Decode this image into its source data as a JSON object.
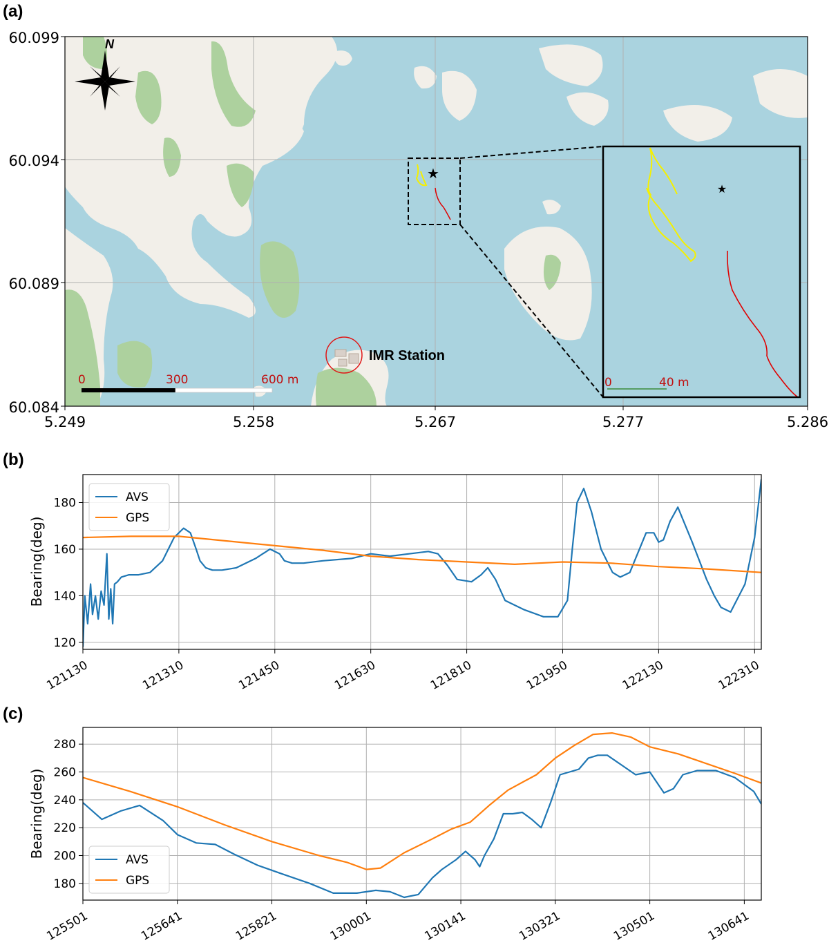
{
  "panels": {
    "a": "(a)",
    "b": "(b)",
    "c": "(c)"
  },
  "colors": {
    "water": "#aad3df",
    "land": "#f2efe9",
    "wood": "#add19e",
    "avs": "#1f77b4",
    "gps": "#ff7f0e",
    "track_yellow": "#f5f000",
    "track_red": "#e00000",
    "scale_text": "#c01010"
  },
  "map": {
    "y_ticks": [
      "60.099",
      "60.094",
      "60.089",
      "60.084"
    ],
    "x_ticks": [
      "5.249",
      "5.258",
      "5.267",
      "5.277",
      "5.286"
    ],
    "north_label": "N",
    "station_label": "IMR Station",
    "scale_labels": [
      "0",
      "300",
      "600 m"
    ],
    "inset_scale_labels": [
      "0",
      "40 m"
    ],
    "icons": [
      "compass-rose-icon",
      "star-icon"
    ]
  },
  "chart_data": [
    {
      "type": "line",
      "panel": "b",
      "ylabel": "Bearing(deg)",
      "xlabel": "",
      "x_tick_labels": [
        "121130",
        "121310",
        "121450",
        "121630",
        "121810",
        "121950",
        "122130",
        "122310"
      ],
      "yticks": [
        120,
        140,
        160,
        180
      ],
      "ylim": [
        117,
        192
      ],
      "xlim": [
        0,
        7.07
      ],
      "grid": true,
      "legend": "upper left",
      "series": [
        {
          "name": "AVS",
          "color": "#1f77b4",
          "x": [
            0,
            0.02,
            0.05,
            0.08,
            0.1,
            0.13,
            0.16,
            0.19,
            0.22,
            0.25,
            0.27,
            0.29,
            0.31,
            0.33,
            0.36,
            0.4,
            0.48,
            0.58,
            0.7,
            0.83,
            0.95,
            1.05,
            1.12,
            1.18,
            1.22,
            1.28,
            1.35,
            1.45,
            1.6,
            1.8,
            1.95,
            2.05,
            2.1,
            2.18,
            2.3,
            2.5,
            2.8,
            3.0,
            3.2,
            3.4,
            3.6,
            3.7,
            3.8,
            3.9,
            4.05,
            4.15,
            4.22,
            4.3,
            4.4,
            4.6,
            4.8,
            4.95,
            5.05,
            5.1,
            5.15,
            5.22,
            5.3,
            5.4,
            5.52,
            5.6,
            5.7,
            5.8,
            5.87,
            5.95,
            6.0,
            6.05,
            6.12,
            6.2,
            6.35,
            6.5,
            6.58,
            6.65,
            6.75,
            6.9,
            7.0,
            7.07
          ],
          "y": [
            118,
            140,
            128,
            145,
            132,
            140,
            130,
            142,
            136,
            158,
            130,
            143,
            128,
            145,
            146,
            148,
            149,
            149,
            150,
            155,
            165,
            169,
            167,
            160,
            155,
            152,
            151,
            151,
            152,
            156,
            160,
            158,
            155,
            154,
            154,
            155,
            156,
            158,
            157,
            158,
            159,
            158,
            153,
            147,
            146,
            149,
            152,
            147,
            138,
            134,
            131,
            131,
            138,
            160,
            180,
            186,
            176,
            160,
            150,
            148,
            150,
            160,
            167,
            167,
            163,
            164,
            172,
            178,
            163,
            147,
            140,
            135,
            133,
            145,
            165,
            190
          ]
        },
        {
          "name": "GPS",
          "color": "#ff7f0e",
          "x": [
            0,
            0.5,
            1.0,
            1.5,
            2.0,
            2.5,
            3.0,
            3.5,
            4.0,
            4.5,
            5.0,
            5.5,
            6.0,
            6.5,
            7.07
          ],
          "y": [
            165,
            165.5,
            165.5,
            163.5,
            161.5,
            159.5,
            157,
            155.5,
            154.5,
            153.5,
            154.5,
            154,
            152.5,
            151.5,
            150
          ]
        }
      ]
    },
    {
      "type": "line",
      "panel": "c",
      "ylabel": "Bearing(deg)",
      "xlabel": "",
      "x_tick_labels": [
        "125501",
        "125641",
        "125821",
        "130001",
        "130141",
        "130321",
        "130501",
        "130641"
      ],
      "yticks": [
        180,
        200,
        220,
        240,
        260,
        280
      ],
      "ylim": [
        168,
        292
      ],
      "xlim": [
        0,
        7.18
      ],
      "grid": true,
      "legend": "lower left",
      "series": [
        {
          "name": "AVS",
          "color": "#1f77b4",
          "x": [
            0,
            0.2,
            0.4,
            0.6,
            0.85,
            1.0,
            1.2,
            1.4,
            1.6,
            1.85,
            2.1,
            2.4,
            2.65,
            2.9,
            3.1,
            3.25,
            3.4,
            3.55,
            3.7,
            3.8,
            3.95,
            4.05,
            4.15,
            4.2,
            4.25,
            4.35,
            4.45,
            4.55,
            4.65,
            4.75,
            4.85,
            4.95,
            5.05,
            5.15,
            5.25,
            5.35,
            5.45,
            5.55,
            5.7,
            5.85,
            6.0,
            6.15,
            6.25,
            6.35,
            6.5,
            6.7,
            6.9,
            7.1,
            7.18
          ],
          "y": [
            238,
            226,
            232,
            236,
            225,
            215,
            209,
            208,
            201,
            193,
            187,
            180,
            173,
            173,
            175,
            174,
            170,
            172,
            184,
            190,
            197,
            203,
            197,
            192,
            200,
            212,
            230,
            230,
            231,
            226,
            220,
            238,
            258,
            260,
            262,
            270,
            272,
            272,
            265,
            258,
            260,
            245,
            248,
            258,
            261,
            261,
            256,
            246,
            237
          ]
        },
        {
          "name": "GPS",
          "color": "#ff7f0e",
          "x": [
            0,
            0.5,
            1.0,
            1.5,
            2.0,
            2.5,
            2.8,
            3.0,
            3.15,
            3.4,
            3.7,
            3.9,
            4.1,
            4.3,
            4.5,
            4.8,
            5.0,
            5.2,
            5.4,
            5.6,
            5.8,
            6.0,
            6.3,
            6.6,
            6.9,
            7.18
          ],
          "y": [
            256,
            246,
            235,
            222,
            210,
            200,
            195,
            190,
            191,
            202,
            212,
            219,
            224,
            236,
            247,
            258,
            270,
            279,
            287,
            288,
            285,
            278,
            273,
            266,
            259,
            252
          ]
        }
      ]
    }
  ]
}
